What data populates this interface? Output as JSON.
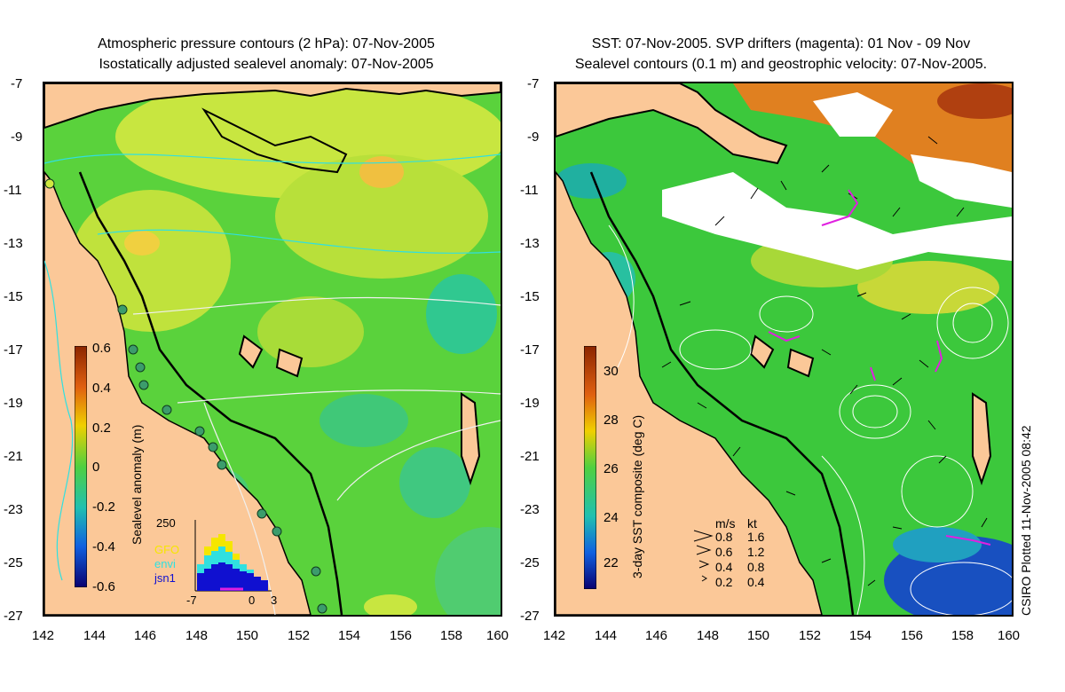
{
  "left_panel": {
    "title_line1": "Atmospheric pressure contours (2 hPa): 07-Nov-2005",
    "title_line2": "Isostatically adjusted sealevel anomaly: 07-Nov-2005",
    "colorbar": {
      "label": "Sealevel anomaly (m)",
      "ticks": [
        "0.6",
        "0.4",
        "0.2",
        "0",
        "-0.2",
        "-0.4",
        "-0.6"
      ]
    },
    "inset": {
      "scale_label": "250",
      "legend": [
        {
          "name": "GFO",
          "color": "#f5e600"
        },
        {
          "name": "envi",
          "color": "#30e0e0"
        },
        {
          "name": "jsn1",
          "color": "#1010d0"
        }
      ],
      "x_ticks": [
        "-7",
        "0",
        "3"
      ]
    }
  },
  "right_panel": {
    "title_line1": "SST: 07-Nov-2005. SVP drifters (magenta): 01 Nov - 09 Nov",
    "title_line2": "Sealevel contours (0.1 m) and geostrophic velocity: 07-Nov-2005.",
    "colorbar": {
      "label": "3-day SST composite (deg C)",
      "ticks": [
        "30",
        "28",
        "26",
        "24",
        "22"
      ]
    },
    "velocity_legend": {
      "header_ms": "m/s",
      "header_kt": "kt",
      "rows": [
        {
          "ms": "0.8",
          "kt": "1.6"
        },
        {
          "ms": "0.6",
          "kt": "1.2"
        },
        {
          "ms": "0.4",
          "kt": "0.8"
        },
        {
          "ms": "0.2",
          "kt": "0.4"
        }
      ]
    }
  },
  "axes": {
    "y_ticks": [
      "-7",
      "-9",
      "-11",
      "-13",
      "-15",
      "-17",
      "-19",
      "-21",
      "-23",
      "-25",
      "-27"
    ],
    "x_ticks": [
      "142",
      "144",
      "146",
      "148",
      "150",
      "152",
      "154",
      "156",
      "158",
      "160"
    ]
  },
  "credit": "CSIRO Plotted 11-Nov-2005 08:42",
  "colors": {
    "land": "#fbc898",
    "sla_green": "#5ad23c",
    "sla_yellow": "#c8e640",
    "sst_green": "#3cc83c",
    "cloud": "#ffffff",
    "warm": "#e08020"
  }
}
